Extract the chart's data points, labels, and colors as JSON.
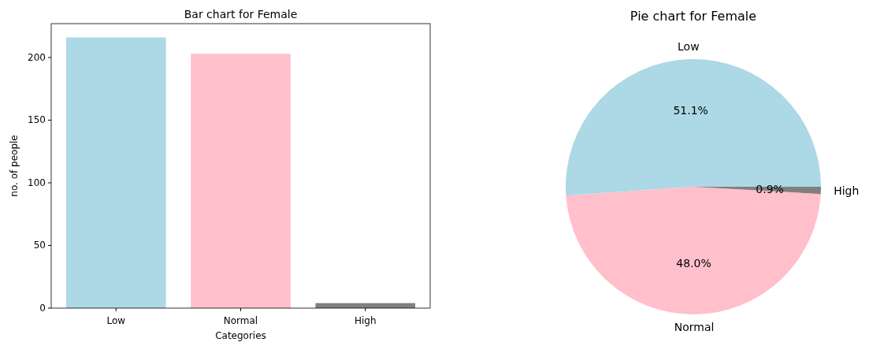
{
  "chart_data": [
    {
      "type": "bar",
      "title": "Bar chart for Female",
      "xlabel": "Categories",
      "ylabel": "no. of people",
      "categories": [
        "Low",
        "Normal",
        "High"
      ],
      "values": [
        216,
        203,
        4
      ],
      "colors": [
        "#add8e6",
        "#ffc0cb",
        "#808080"
      ],
      "ylim": [
        0,
        227
      ],
      "yticks": [
        0,
        50,
        100,
        150,
        200
      ],
      "grid": false
    },
    {
      "type": "pie",
      "title": "Pie chart for Female",
      "categories": [
        "Low",
        "Normal",
        "High"
      ],
      "values": [
        51.1,
        48.0,
        0.9
      ],
      "value_labels": [
        "51.1%",
        "48.0%",
        "0.9%"
      ],
      "colors": [
        "#add8e6",
        "#ffc0cb",
        "#808080"
      ]
    }
  ]
}
